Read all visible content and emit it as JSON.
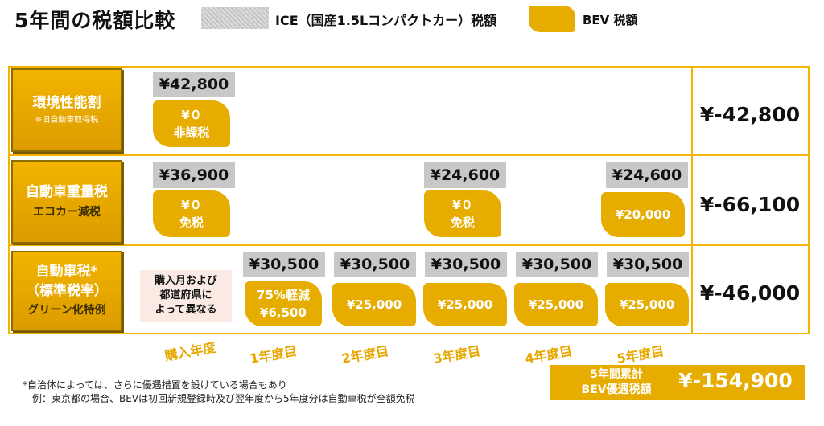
{
  "title": "5年間の税額比較",
  "legend": {
    "ice_label": "ICE（国産1.5Lコンパクトカー）税額",
    "bev_label": "BEV 税額"
  },
  "colors": {
    "accent": "#e6ad00",
    "border": "#f2b400",
    "ice_gray": "#c8c8c8",
    "note_bg": "#fbe9e4"
  },
  "rows": [
    {
      "label": "環境性能割",
      "sub": "※旧自動車取得税",
      "ice": [
        "¥42,800"
      ],
      "bev": [
        [
          "¥０",
          "非課税"
        ]
      ],
      "total": "¥-42,800"
    },
    {
      "label": "自動車重量税",
      "sub": "エコカー減税",
      "ice": [
        "¥36,900",
        "¥24,600",
        "¥24,600"
      ],
      "bev": [
        [
          "¥０",
          "免税"
        ],
        [
          "¥０",
          "免税"
        ],
        [
          "¥20,000"
        ]
      ],
      "total": "¥-66,100"
    },
    {
      "label1": "自動車税*",
      "label2": "（標準税率）",
      "sub": "グリーン化特例",
      "note": [
        "購入月および",
        "都道府県に",
        "よって異なる"
      ],
      "ice": [
        "¥30,500",
        "¥30,500",
        "¥30,500",
        "¥30,500",
        "¥30,500"
      ],
      "bev": [
        [
          "75%軽減",
          "¥6,500"
        ],
        [
          "¥25,000"
        ],
        [
          "¥25,000"
        ],
        [
          "¥25,000"
        ],
        [
          "¥25,000"
        ]
      ],
      "total": "¥-46,000"
    }
  ],
  "years": [
    "購入年度",
    "1年度目",
    "2年度目",
    "3年度目",
    "4年度目",
    "5年度目"
  ],
  "footnotes": [
    "*自治体によっては、さらに優遇措置を設けている場合もあり",
    "　例：東京都の場合、BEVは初回新規登録時及び翌年度から5年度分は自動車税が全額免税"
  ],
  "summary": {
    "label1": "5年間累計",
    "label2": "BEV優遇税額",
    "value": "¥-154,900"
  }
}
